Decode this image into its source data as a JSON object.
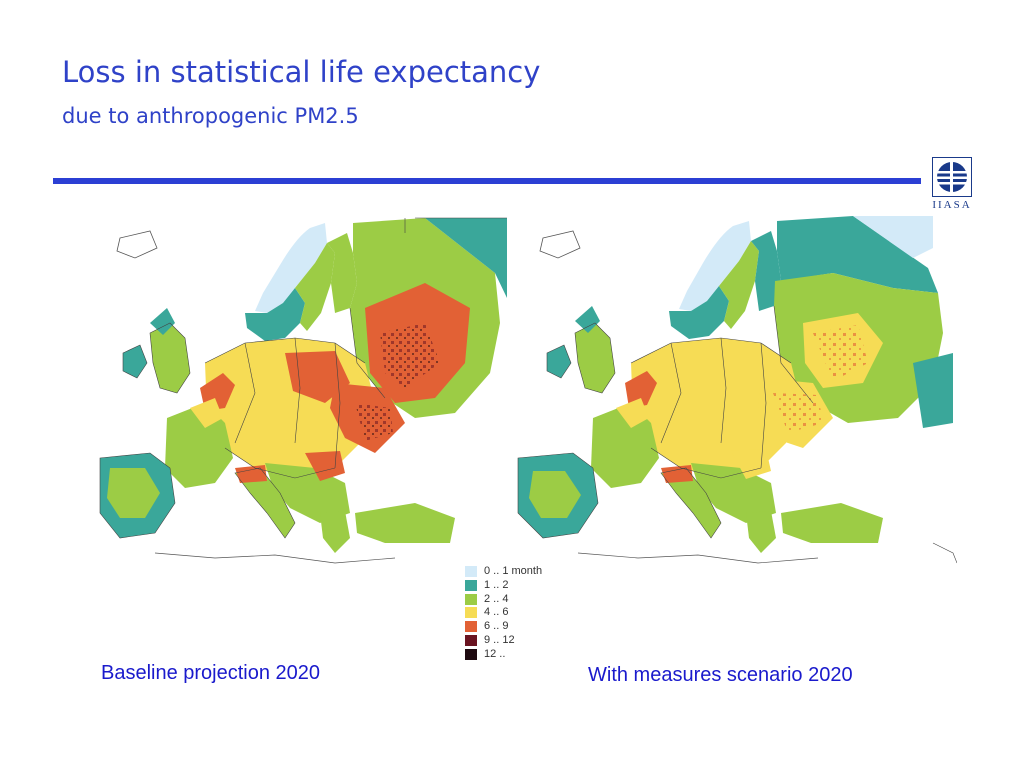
{
  "title": "Loss in statistical life expectancy",
  "subtitle": "due to anthropogenic PM2.5",
  "logo": {
    "text": "IIASA",
    "color": "#1a3a8a"
  },
  "colors": {
    "accent": "#2b3fd4",
    "title": "#2f42c8",
    "caption": "#1a1acc"
  },
  "legend": [
    {
      "label": "0 .. 1 month",
      "color": "#d3eaf8"
    },
    {
      "label": "1 .. 2",
      "color": "#3aa79a"
    },
    {
      "label": "2 .. 4",
      "color": "#9ccc45"
    },
    {
      "label": "4 .. 6",
      "color": "#f6dc55"
    },
    {
      "label": "6 .. 9",
      "color": "#e26135"
    },
    {
      "label": "9 .. 12",
      "color": "#6a1421"
    },
    {
      "label": "12 ..",
      "color": "#1e0a10"
    }
  ],
  "maps": [
    {
      "caption": "Baseline projection 2020",
      "scenario": "baseline"
    },
    {
      "caption": "With measures scenario 2020",
      "scenario": "measures"
    }
  ]
}
